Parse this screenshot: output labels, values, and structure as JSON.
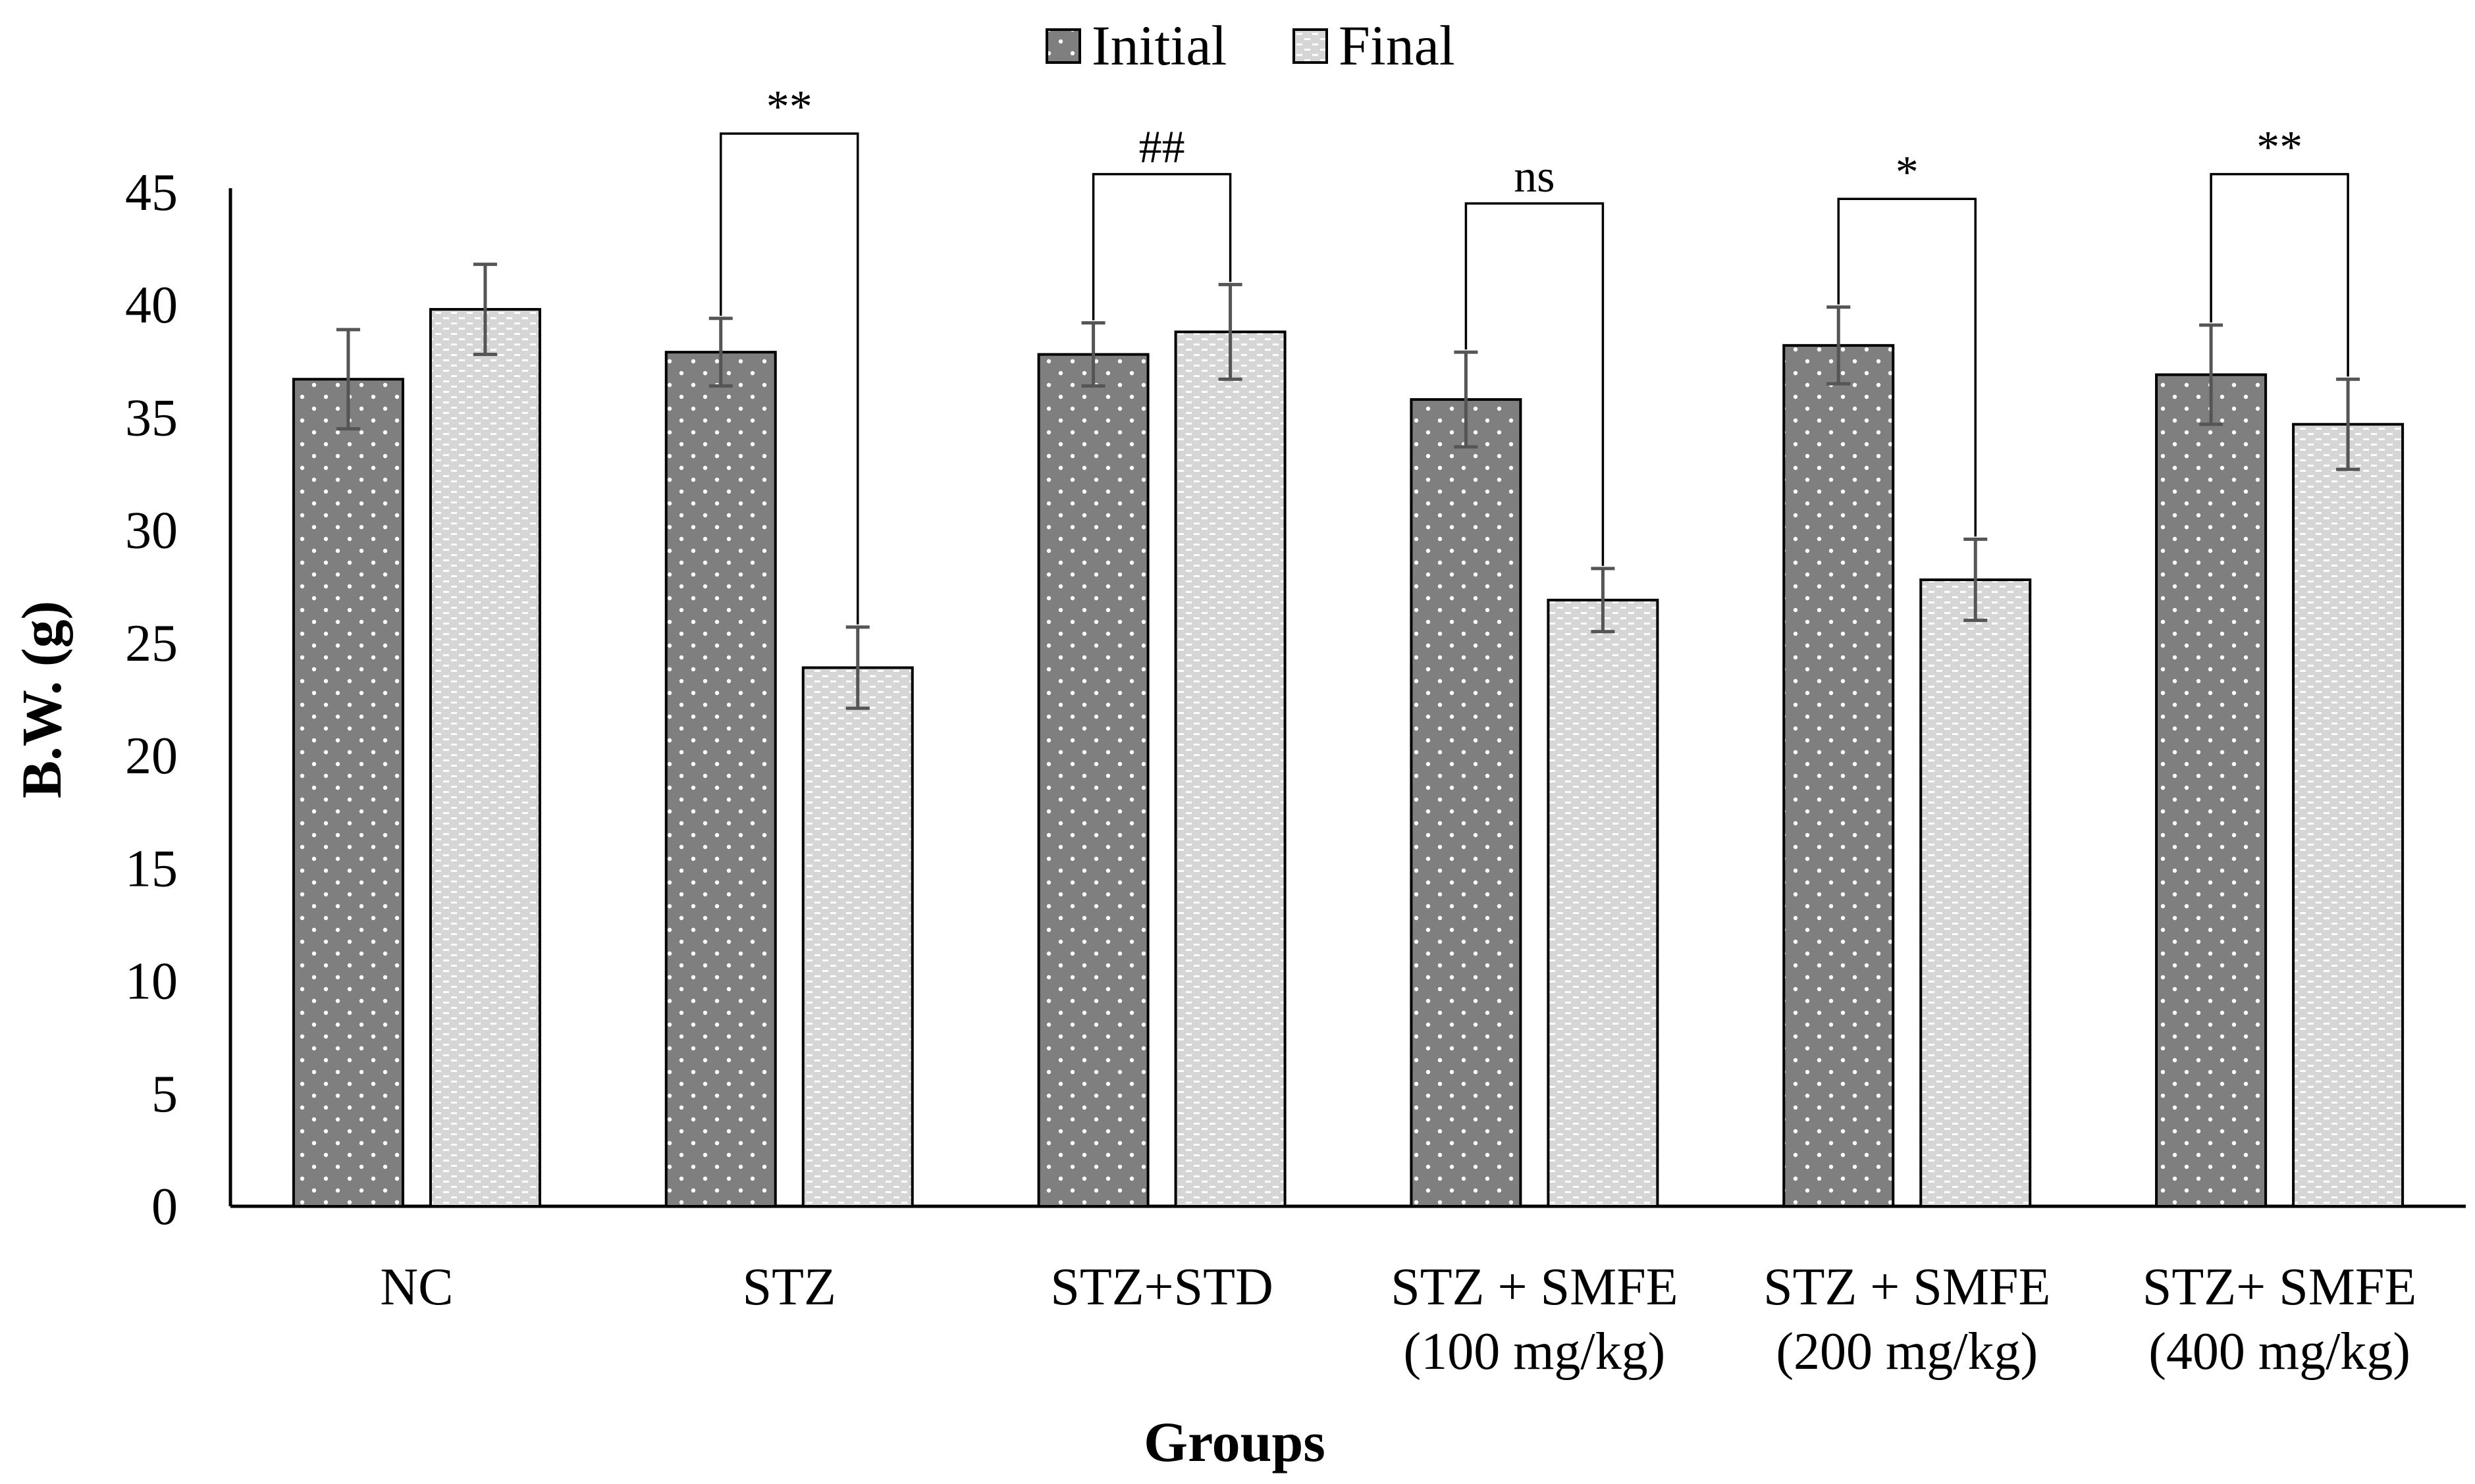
{
  "chart_data": {
    "type": "bar",
    "title": "",
    "xlabel": "Groups",
    "ylabel": "B.W. (g)",
    "ylim": [
      0,
      45
    ],
    "yticks": [
      0,
      5,
      10,
      15,
      20,
      25,
      30,
      35,
      40,
      45
    ],
    "grid": false,
    "legend_position": "top-center",
    "categories": [
      [
        "NC"
      ],
      [
        "STZ"
      ],
      [
        "STZ+STD"
      ],
      [
        "STZ + SMFE",
        "(100 mg/kg)"
      ],
      [
        "STZ + SMFE",
        "(200 mg/kg)"
      ],
      [
        "STZ+ SMFE",
        "(400 mg/kg)"
      ]
    ],
    "series": [
      {
        "name": "Initial",
        "color": "#7f7f7f",
        "pattern": "dots",
        "values": [
          36.7,
          37.9,
          37.8,
          35.8,
          38.2,
          36.9
        ],
        "errors": [
          2.2,
          1.5,
          1.4,
          2.1,
          1.7,
          2.2
        ]
      },
      {
        "name": "Final",
        "color": "#d9d9d9",
        "pattern": "dashes",
        "values": [
          39.8,
          23.9,
          38.8,
          26.9,
          27.8,
          34.7
        ],
        "errors": [
          2.0,
          1.8,
          2.1,
          1.4,
          1.8,
          2.0
        ]
      }
    ],
    "significance": [
      {
        "label": "",
        "height": 45
      },
      {
        "label": "**",
        "height": 47.6
      },
      {
        "label": "##",
        "height": 45.8
      },
      {
        "label": "ns",
        "height": 44.5
      },
      {
        "label": "*",
        "height": 44.7
      },
      {
        "label": "**",
        "height": 45.8
      }
    ]
  }
}
